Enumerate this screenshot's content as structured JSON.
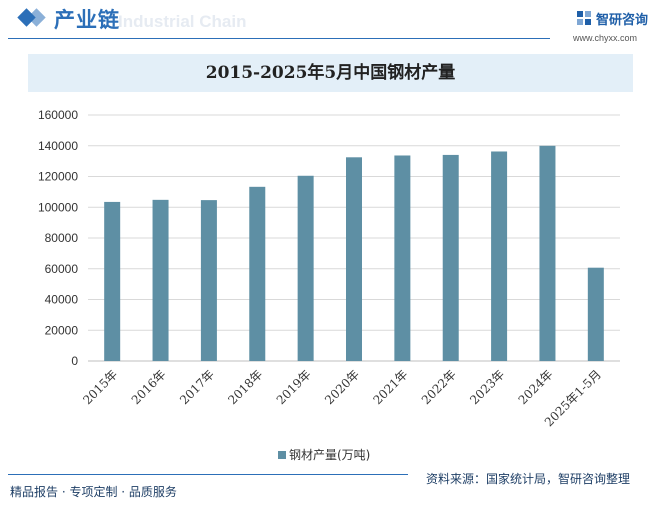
{
  "header": {
    "section_title": "产业链",
    "watermark_en": "Industrial Chain",
    "brand_name": "智研咨询",
    "brand_url": "www.chyxx.com"
  },
  "colors": {
    "accent": "#2c6fb8",
    "bar": "#5e8fa4",
    "grid": "#d9d9d9",
    "title_band": "#e3eff8"
  },
  "footer": {
    "left_text": "精品报告 · 专项定制 · 品质服务",
    "source_text": "资料来源：国家统计局，智研咨询整理"
  },
  "chart_data": {
    "type": "bar",
    "title": "2015-2025年5月中国钢材产量",
    "categories": [
      "2015年",
      "2016年",
      "2017年",
      "2018年",
      "2019年",
      "2020年",
      "2021年",
      "2022年",
      "2023年",
      "2024年",
      "2025年1-5月"
    ],
    "series": [
      {
        "name": "钢材产量(万吨)",
        "values": [
          103468,
          104813,
          104642,
          113287,
          120477,
          132489,
          133667,
          134034,
          136268,
          139967,
          60686
        ]
      }
    ],
    "xlabel": "",
    "ylabel": "",
    "ylim": [
      0,
      160000
    ],
    "yticks": [
      0,
      20000,
      40000,
      60000,
      80000,
      100000,
      120000,
      140000,
      160000
    ],
    "grid": true,
    "legend_position": "bottom-center"
  }
}
